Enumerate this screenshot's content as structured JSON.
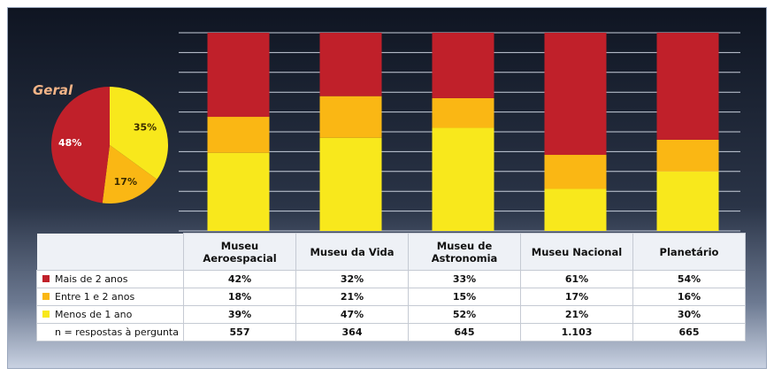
{
  "colors": {
    "mais": "#c0202a",
    "entre": "#fab714",
    "menos": "#f8e81c"
  },
  "chart_data": [
    {
      "type": "pie",
      "title": "Geral",
      "slices": [
        {
          "label": "Mais de 2 anos",
          "value": 48,
          "display": "48%",
          "color": "#c0202a"
        },
        {
          "label": "Entre 1 e 2 anos",
          "value": 17,
          "display": "17%",
          "color": "#fab714"
        },
        {
          "label": "Menos de 1 ano",
          "value": 35,
          "display": "35%",
          "color": "#f8e81c"
        }
      ]
    },
    {
      "type": "bar",
      "stacked": true,
      "categories": [
        "Museu Aeroespacial",
        "Museu da Vida",
        "Museu de Astronomia",
        "Museu Nacional",
        "Planetário"
      ],
      "series": [
        {
          "name": "Menos de 1 ano",
          "values": [
            39,
            47,
            52,
            21,
            30
          ],
          "labels": [
            "39%",
            "47%",
            "52%",
            "21%",
            "30%"
          ],
          "color": "#f8e81c"
        },
        {
          "name": "Entre 1 e 2 anos",
          "values": [
            18,
            21,
            15,
            17,
            16
          ],
          "labels": [
            "18%",
            "21%",
            "15%",
            "17%",
            "16%"
          ],
          "color": "#fab714"
        },
        {
          "name": "Mais de 2 anos",
          "values": [
            42,
            32,
            33,
            61,
            54
          ],
          "labels": [
            "42%",
            "32%",
            "33%",
            "61%",
            "54%"
          ],
          "color": "#c0202a"
        }
      ],
      "n_label": "n = respostas à pergunta",
      "n_values": [
        "557",
        "364",
        "645",
        "1.103",
        "665"
      ],
      "grid": true
    }
  ]
}
